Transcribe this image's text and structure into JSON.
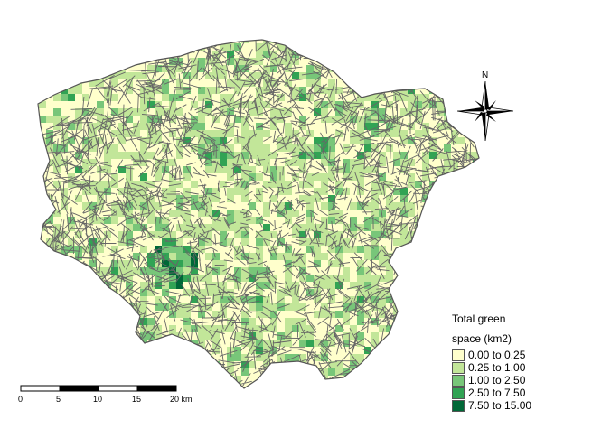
{
  "colors": {
    "background": "#ffffff",
    "boundary": "#666666",
    "classes": [
      "#ffffcc",
      "#c2e699",
      "#78c679",
      "#31a354",
      "#006837"
    ]
  },
  "legend": {
    "title_line1": "Total green",
    "title_line2": "space (km2)",
    "entries": [
      {
        "label": "0.00 to 0.25",
        "color": "#ffffcc"
      },
      {
        "label": "0.25 to 1.00",
        "color": "#c2e699"
      },
      {
        "label": "1.00 to 2.50",
        "color": "#78c679"
      },
      {
        "label": "2.50 to 7.50",
        "color": "#31a354"
      },
      {
        "label": "7.50 to 15.00",
        "color": "#006837"
      }
    ]
  },
  "scale_bar": {
    "labels": [
      "0",
      "5",
      "10",
      "15",
      "20 km"
    ]
  },
  "north_arrow": {
    "label": "N"
  }
}
